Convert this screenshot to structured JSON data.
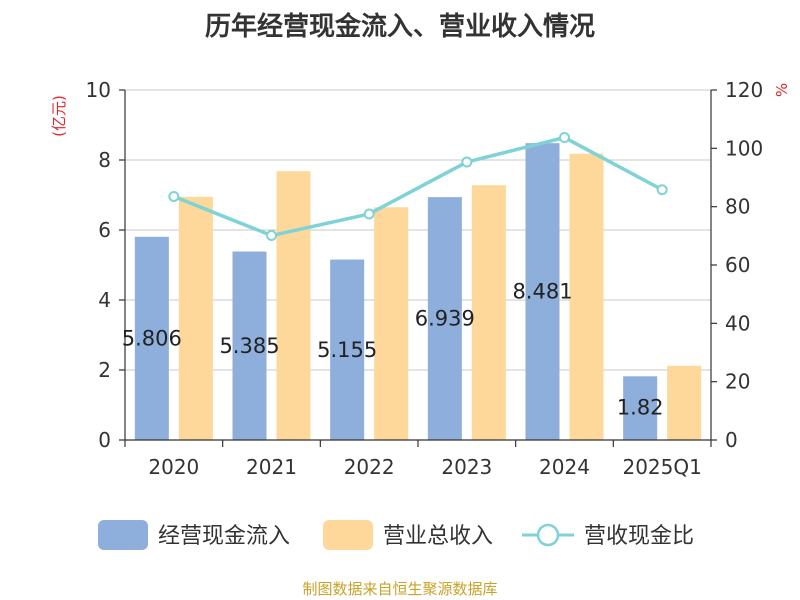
{
  "chart_data": {
    "type": "bar",
    "title": "历年经营现金流入、营业收入情况",
    "categories": [
      "2020",
      "2021",
      "2022",
      "2023",
      "2024",
      "2025Q1"
    ],
    "series": [
      {
        "name": "经营现金流入",
        "type": "bar",
        "axis": "left",
        "color": "#8eaedb",
        "values": [
          5.806,
          5.385,
          5.155,
          6.939,
          8.481,
          1.82
        ],
        "labels": [
          "5.806",
          "5.385",
          "5.155",
          "6.939",
          "8.481",
          "1.82"
        ]
      },
      {
        "name": "营业总收入",
        "type": "bar",
        "axis": "left",
        "color": "#fdd89a",
        "values": [
          6.95,
          7.68,
          6.65,
          7.28,
          8.18,
          2.12
        ]
      },
      {
        "name": "营收现金比",
        "type": "line",
        "axis": "right",
        "color": "#7fd3d6",
        "values": [
          83.5,
          70.1,
          77.5,
          95.3,
          103.7,
          85.8
        ]
      }
    ],
    "ylabel_left": "(亿元)",
    "ylabel_right": "%",
    "ylim_left": [
      0,
      10
    ],
    "ylim_right": [
      0,
      120
    ],
    "yticks_left": [
      "0",
      "2",
      "4",
      "6",
      "8",
      "10"
    ],
    "yticks_right": [
      "0",
      "20",
      "40",
      "60",
      "80",
      "100",
      "120"
    ],
    "grid": true,
    "legend_position": "bottom"
  },
  "source": "制图数据来自恒生聚源数据库"
}
